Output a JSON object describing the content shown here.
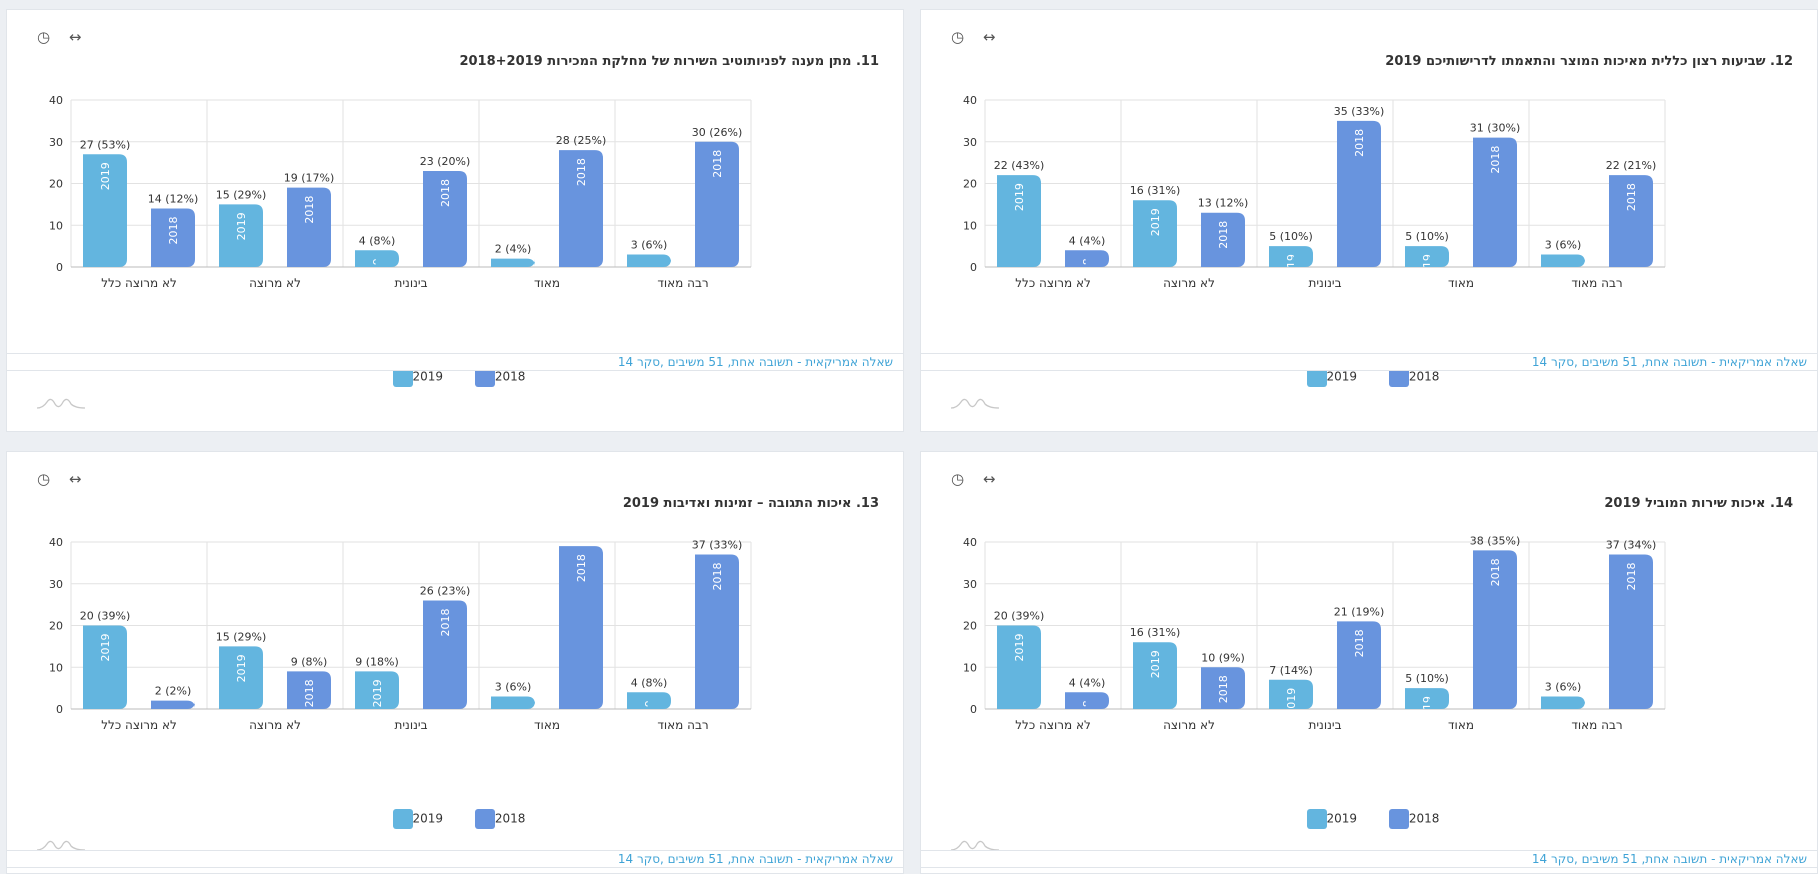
{
  "colors": {
    "2019": "#63b5df",
    "2018": "#6894de",
    "footer_text": "#3fa3d6"
  },
  "footer_text": "שאלה אמריקאית - תשובה אחת, 51 משיבים ,סקר 14",
  "legend": [
    "2019",
    "2018"
  ],
  "tool_icons": [
    "pie-chart-icon",
    "expand-horizontal-icon"
  ],
  "chart_data": [
    {
      "type": "bar",
      "title": "11. מתן מענה לפניותוטיב השירות של מחלקת המכירות 2018+2019",
      "categories": [
        "לא מרוצה כלל",
        "לא מרוצה",
        "בינונית",
        "מאוד",
        "רבה מאוד"
      ],
      "ylim": [
        0,
        40
      ],
      "yticks": [
        0,
        10,
        20,
        30,
        40
      ],
      "grid": true,
      "legend": "bottom",
      "series": [
        {
          "name": "2019",
          "values": [
            27,
            15,
            4,
            2,
            3
          ],
          "labels": [
            "27 (53%)",
            "15 (29%)",
            "4 (8%)",
            "2 (4%)",
            "3 (6%)"
          ]
        },
        {
          "name": "2018",
          "values": [
            14,
            19,
            23,
            28,
            30
          ],
          "labels": [
            "14 (12%)",
            "19 (17%)",
            "23 (20%)",
            "28 (25%)",
            "30 (26%)"
          ]
        }
      ]
    },
    {
      "type": "bar",
      "title": "12. שביעות רצון כללית מאיכות המוצר והתאמתו לדרישותיכם 2019",
      "categories": [
        "לא מרוצה כלל",
        "לא מרוצה",
        "בינונית",
        "מאוד",
        "רבה מאוד"
      ],
      "ylim": [
        0,
        40
      ],
      "yticks": [
        0,
        10,
        20,
        30,
        40
      ],
      "grid": true,
      "legend": "bottom",
      "series": [
        {
          "name": "2019",
          "values": [
            22,
            16,
            5,
            5,
            3
          ],
          "labels": [
            "22 (43%)",
            "16 (31%)",
            "5 (10%)",
            "5 (10%)",
            "3 (6%)"
          ]
        },
        {
          "name": "2018",
          "values": [
            4,
            13,
            35,
            31,
            22
          ],
          "labels": [
            "4 (4%)",
            "13 (12%)",
            "35 (33%)",
            "31 (30%)",
            "22 (21%)"
          ]
        }
      ]
    },
    {
      "type": "bar",
      "title": "13. איכות התגובה – זמינות ואדיבות 2019",
      "categories": [
        "לא מרוצה כלל",
        "לא מרוצה",
        "בינונית",
        "מאוד",
        "רבה מאוד"
      ],
      "ylim": [
        0,
        40
      ],
      "yticks": [
        0,
        10,
        20,
        30,
        40
      ],
      "grid": true,
      "legend": "bottom",
      "series": [
        {
          "name": "2019",
          "values": [
            20,
            15,
            9,
            3,
            4
          ],
          "labels": [
            "20 (39%)",
            "15 (29%)",
            "9 (18%)",
            "3 (6%)",
            "4 (8%)"
          ]
        },
        {
          "name": "2018",
          "values": [
            2,
            9,
            26,
            39,
            37
          ],
          "labels": [
            "2 (2%)",
            "9 (8%)",
            "26 (23%)",
            "",
            "37 (33%)"
          ]
        }
      ]
    },
    {
      "type": "bar",
      "title": "14. איכות שירות המוביל 2019",
      "categories": [
        "לא מרוצה כלל",
        "לא מרוצה",
        "בינונית",
        "מאוד",
        "רבה מאוד"
      ],
      "ylim": [
        0,
        40
      ],
      "yticks": [
        0,
        10,
        20,
        30,
        40
      ],
      "grid": true,
      "legend": "bottom",
      "series": [
        {
          "name": "2019",
          "values": [
            20,
            16,
            7,
            5,
            3
          ],
          "labels": [
            "20 (39%)",
            "16 (31%)",
            "7 (14%)",
            "5 (10%)",
            "3 (6%)"
          ]
        },
        {
          "name": "2018",
          "values": [
            4,
            10,
            21,
            38,
            37
          ],
          "labels": [
            "4 (4%)",
            "10 (9%)",
            "21 (19%)",
            "38 (35%)",
            "37 (34%)"
          ]
        }
      ]
    }
  ]
}
